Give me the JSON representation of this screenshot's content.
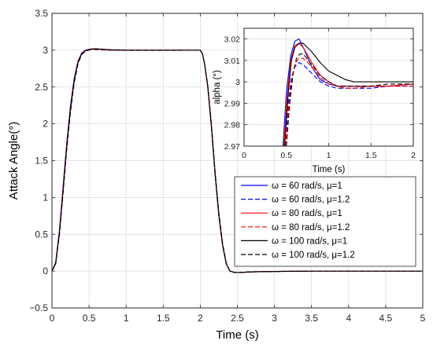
{
  "chart_data": [
    {
      "type": "line",
      "xlabel": "Time (s)",
      "ylabel": "Attack Angle(°)",
      "xlim": [
        0,
        5
      ],
      "ylim": [
        -0.5,
        3.5
      ],
      "xticks": [
        0,
        0.5,
        1,
        1.5,
        2,
        2.5,
        3,
        3.5,
        4,
        4.5,
        5
      ],
      "yticks": [
        -0.5,
        0,
        0.5,
        1,
        1.5,
        2,
        2.5,
        3,
        3.5
      ],
      "xtick_labels": [
        "0",
        "0.5",
        "1",
        "1.5",
        "2",
        "2.5",
        "3",
        "3.5",
        "4",
        "4.5",
        "5"
      ],
      "ytick_labels": [
        "−0.5",
        "0",
        "0.5",
        "1",
        "1.5",
        "2",
        "2.5",
        "3",
        "3.5"
      ],
      "grid": true,
      "legend_position": "lower-right",
      "series": [
        {
          "name": "ω = 60 rad/s, μ=1",
          "color": "#0000ff",
          "dash": "solid",
          "x": [
            0,
            0.05,
            0.1,
            0.15,
            0.2,
            0.25,
            0.3,
            0.35,
            0.4,
            0.45,
            0.5,
            0.55,
            0.6,
            0.65,
            0.7,
            0.8,
            1.0,
            1.5,
            2.0,
            2.03,
            2.06,
            2.1,
            2.15,
            2.2,
            2.25,
            2.3,
            2.35,
            2.4,
            2.45,
            2.5,
            2.55,
            2.6,
            2.7,
            3.0,
            3.5,
            4.0,
            4.5,
            5.0
          ],
          "y": [
            0,
            0.12,
            0.55,
            1.15,
            1.75,
            2.25,
            2.62,
            2.85,
            2.96,
            3.0,
            3.012,
            3.02,
            3.018,
            3.012,
            3.006,
            3.002,
            3.0,
            3.0,
            3.0,
            2.95,
            2.8,
            2.5,
            1.95,
            1.3,
            0.75,
            0.35,
            0.1,
            0.0,
            -0.015,
            -0.02,
            -0.018,
            -0.015,
            -0.01,
            -0.005,
            0.0,
            0.0,
            0.0,
            0.0
          ]
        },
        {
          "name": "ω = 60 rad/s, μ=1.2",
          "color": "#0000ff",
          "dash": "dashed",
          "x": [
            0,
            0.05,
            0.1,
            0.15,
            0.2,
            0.25,
            0.3,
            0.35,
            0.4,
            0.45,
            0.5,
            0.55,
            0.6,
            0.65,
            0.7,
            0.8,
            1.0,
            1.5,
            2.0,
            2.03,
            2.06,
            2.1,
            2.15,
            2.2,
            2.25,
            2.3,
            2.35,
            2.4,
            2.45,
            2.5,
            2.55,
            2.6,
            2.7,
            3.0,
            3.5,
            4.0,
            4.5,
            5.0
          ],
          "y": [
            0,
            0.11,
            0.52,
            1.1,
            1.7,
            2.2,
            2.58,
            2.83,
            2.95,
            2.99,
            3.005,
            3.01,
            3.009,
            3.006,
            3.003,
            3.0,
            2.998,
            2.998,
            2.999,
            2.95,
            2.8,
            2.52,
            1.98,
            1.33,
            0.78,
            0.37,
            0.11,
            0.0,
            -0.015,
            -0.02,
            -0.018,
            -0.015,
            -0.01,
            -0.005,
            0.0,
            0.0,
            0.0,
            0.0
          ]
        },
        {
          "name": "ω = 80 rad/s, μ=1",
          "color": "#ff0000",
          "dash": "solid",
          "x": [
            0,
            0.05,
            0.1,
            0.15,
            0.2,
            0.25,
            0.3,
            0.35,
            0.4,
            0.45,
            0.5,
            0.55,
            0.6,
            0.65,
            0.7,
            0.8,
            1.0,
            1.5,
            2.0,
            2.03,
            2.06,
            2.1,
            2.15,
            2.2,
            2.25,
            2.3,
            2.35,
            2.4,
            2.45,
            2.5,
            2.55,
            2.6,
            2.7,
            3.0,
            3.5,
            4.0,
            4.5,
            5.0
          ],
          "y": [
            0,
            0.11,
            0.53,
            1.12,
            1.72,
            2.22,
            2.6,
            2.84,
            2.955,
            2.995,
            3.01,
            3.018,
            3.017,
            3.012,
            3.006,
            3.002,
            3.0,
            3.0,
            3.0,
            2.95,
            2.8,
            2.51,
            1.96,
            1.31,
            0.76,
            0.36,
            0.1,
            0.0,
            -0.015,
            -0.02,
            -0.018,
            -0.015,
            -0.01,
            -0.005,
            0.0,
            0.0,
            0.0,
            0.0
          ]
        },
        {
          "name": "ω = 80 rad/s, μ=1.2",
          "color": "#ff0000",
          "dash": "dashed",
          "x": [
            0,
            0.05,
            0.1,
            0.15,
            0.2,
            0.25,
            0.3,
            0.35,
            0.4,
            0.45,
            0.5,
            0.55,
            0.6,
            0.65,
            0.7,
            0.8,
            1.0,
            1.5,
            2.0,
            2.03,
            2.06,
            2.1,
            2.15,
            2.2,
            2.25,
            2.3,
            2.35,
            2.4,
            2.45,
            2.5,
            2.55,
            2.6,
            2.7,
            3.0,
            3.5,
            4.0,
            4.5,
            5.0
          ],
          "y": [
            0,
            0.1,
            0.5,
            1.08,
            1.68,
            2.18,
            2.57,
            2.82,
            2.945,
            2.99,
            3.006,
            3.012,
            3.012,
            3.009,
            3.005,
            3.0,
            2.998,
            2.998,
            2.999,
            2.95,
            2.8,
            2.53,
            1.99,
            1.34,
            0.79,
            0.38,
            0.11,
            0.0,
            -0.015,
            -0.02,
            -0.018,
            -0.015,
            -0.01,
            -0.005,
            0.0,
            0.0,
            0.0,
            0.0
          ]
        },
        {
          "name": "ω = 100 rad/s, μ=1",
          "color": "#000000",
          "dash": "solid",
          "x": [
            0,
            0.05,
            0.1,
            0.15,
            0.2,
            0.25,
            0.3,
            0.35,
            0.4,
            0.45,
            0.5,
            0.55,
            0.6,
            0.65,
            0.7,
            0.8,
            1.0,
            1.5,
            2.0,
            2.03,
            2.06,
            2.1,
            2.15,
            2.2,
            2.25,
            2.3,
            2.35,
            2.4,
            2.45,
            2.5,
            2.55,
            2.6,
            2.7,
            3.0,
            3.5,
            4.0,
            4.5,
            5.0
          ],
          "y": [
            0,
            0.1,
            0.51,
            1.1,
            1.7,
            2.2,
            2.59,
            2.83,
            2.95,
            2.993,
            3.008,
            3.016,
            3.018,
            3.016,
            3.012,
            3.006,
            3.001,
            3.0,
            3.0,
            2.95,
            2.8,
            2.52,
            1.97,
            1.32,
            0.77,
            0.36,
            0.1,
            0.0,
            -0.015,
            -0.02,
            -0.018,
            -0.015,
            -0.01,
            -0.005,
            0.0,
            0.0,
            0.0,
            0.0
          ]
        },
        {
          "name": "ω = 100 rad/s, μ=1.2",
          "color": "#000000",
          "dash": "dashed",
          "x": [
            0,
            0.05,
            0.1,
            0.15,
            0.2,
            0.25,
            0.3,
            0.35,
            0.4,
            0.45,
            0.5,
            0.55,
            0.6,
            0.65,
            0.7,
            0.8,
            1.0,
            1.5,
            2.0,
            2.03,
            2.06,
            2.1,
            2.15,
            2.2,
            2.25,
            2.3,
            2.35,
            2.4,
            2.45,
            2.5,
            2.55,
            2.6,
            2.7,
            3.0,
            3.5,
            4.0,
            4.5,
            5.0
          ],
          "y": [
            0,
            0.1,
            0.49,
            1.06,
            1.66,
            2.16,
            2.56,
            2.81,
            2.94,
            2.985,
            3.003,
            3.01,
            3.013,
            3.012,
            3.009,
            3.003,
            2.999,
            2.999,
            2.999,
            2.95,
            2.8,
            2.53,
            2.0,
            1.35,
            0.8,
            0.38,
            0.11,
            0.0,
            -0.015,
            -0.02,
            -0.018,
            -0.015,
            -0.01,
            -0.005,
            0.0,
            0.0,
            0.0,
            0.0
          ]
        }
      ]
    },
    {
      "type": "line",
      "xlabel": "Time (s)",
      "ylabel": "alpha (°)",
      "xlim": [
        0,
        2
      ],
      "ylim": [
        2.97,
        3.025
      ],
      "xticks": [
        0,
        0.5,
        1,
        1.5,
        2
      ],
      "yticks": [
        2.97,
        2.98,
        2.99,
        3,
        3.01,
        3.02
      ],
      "xtick_labels": [
        "0",
        "0.5",
        "1",
        "1.5",
        "2"
      ],
      "ytick_labels": [
        "2.97",
        "2.98",
        "2.99",
        "3",
        "3.01",
        "3.02"
      ],
      "grid": true,
      "series": [
        {
          "name": "ω = 60 rad/s, μ=1",
          "color": "#0000ff",
          "dash": "solid",
          "x": [
            0.46,
            0.5,
            0.55,
            0.6,
            0.65,
            0.7,
            0.8,
            0.9,
            1.0,
            1.1,
            1.2,
            1.3,
            1.5,
            1.7,
            2.0
          ],
          "y": [
            2.97,
            2.995,
            3.012,
            3.019,
            3.02,
            3.016,
            3.007,
            3.001,
            2.999,
            2.998,
            2.998,
            2.998,
            2.998,
            2.998,
            2.999
          ]
        },
        {
          "name": "ω = 60 rad/s, μ=1.2",
          "color": "#0000ff",
          "dash": "dashed",
          "x": [
            0.48,
            0.52,
            0.56,
            0.6,
            0.65,
            0.7,
            0.8,
            0.9,
            1.0,
            1.1,
            1.2,
            1.3,
            1.5,
            1.7,
            2.0
          ],
          "y": [
            2.97,
            2.99,
            3.002,
            3.007,
            3.009,
            3.008,
            3.004,
            3.0,
            2.998,
            2.997,
            2.997,
            2.997,
            2.997,
            2.998,
            2.998
          ]
        },
        {
          "name": "ω = 80 rad/s, μ=1",
          "color": "#ff0000",
          "dash": "solid",
          "x": [
            0.47,
            0.51,
            0.55,
            0.6,
            0.65,
            0.7,
            0.8,
            0.9,
            1.0,
            1.1,
            1.2,
            1.3,
            1.5,
            1.7,
            2.0
          ],
          "y": [
            2.97,
            2.993,
            3.01,
            3.017,
            3.018,
            3.016,
            3.009,
            3.003,
            3.0,
            2.998,
            2.998,
            2.998,
            2.998,
            2.998,
            2.999
          ]
        },
        {
          "name": "ω = 80 rad/s, μ=1.2",
          "color": "#ff0000",
          "dash": "dashed",
          "x": [
            0.49,
            0.53,
            0.57,
            0.61,
            0.65,
            0.7,
            0.8,
            0.9,
            1.0,
            1.1,
            1.2,
            1.3,
            1.5,
            1.7,
            2.0
          ],
          "y": [
            2.97,
            2.99,
            3.003,
            3.009,
            3.011,
            3.011,
            3.007,
            3.002,
            2.999,
            2.998,
            2.997,
            2.997,
            2.998,
            2.998,
            2.998
          ]
        },
        {
          "name": "ω = 100 rad/s, μ=1",
          "color": "#000000",
          "dash": "solid",
          "x": [
            0.48,
            0.52,
            0.56,
            0.6,
            0.65,
            0.7,
            0.8,
            0.9,
            1.0,
            1.1,
            1.2,
            1.3,
            1.5,
            1.7,
            2.0
          ],
          "y": [
            2.97,
            2.994,
            3.01,
            3.016,
            3.018,
            3.018,
            3.014,
            3.009,
            3.005,
            3.003,
            3.001,
            3.0,
            3.0,
            3.0,
            3.0
          ]
        },
        {
          "name": "ω = 100 rad/s, μ=1.2",
          "color": "#000000",
          "dash": "dashed",
          "x": [
            0.5,
            0.54,
            0.58,
            0.62,
            0.66,
            0.7,
            0.8,
            0.9,
            1.0,
            1.1,
            1.2,
            1.3,
            1.5,
            1.7,
            2.0
          ],
          "y": [
            2.97,
            2.99,
            3.004,
            3.011,
            3.013,
            3.013,
            3.008,
            3.003,
            3.0,
            2.998,
            2.998,
            2.998,
            2.998,
            2.999,
            2.999
          ]
        }
      ]
    }
  ]
}
